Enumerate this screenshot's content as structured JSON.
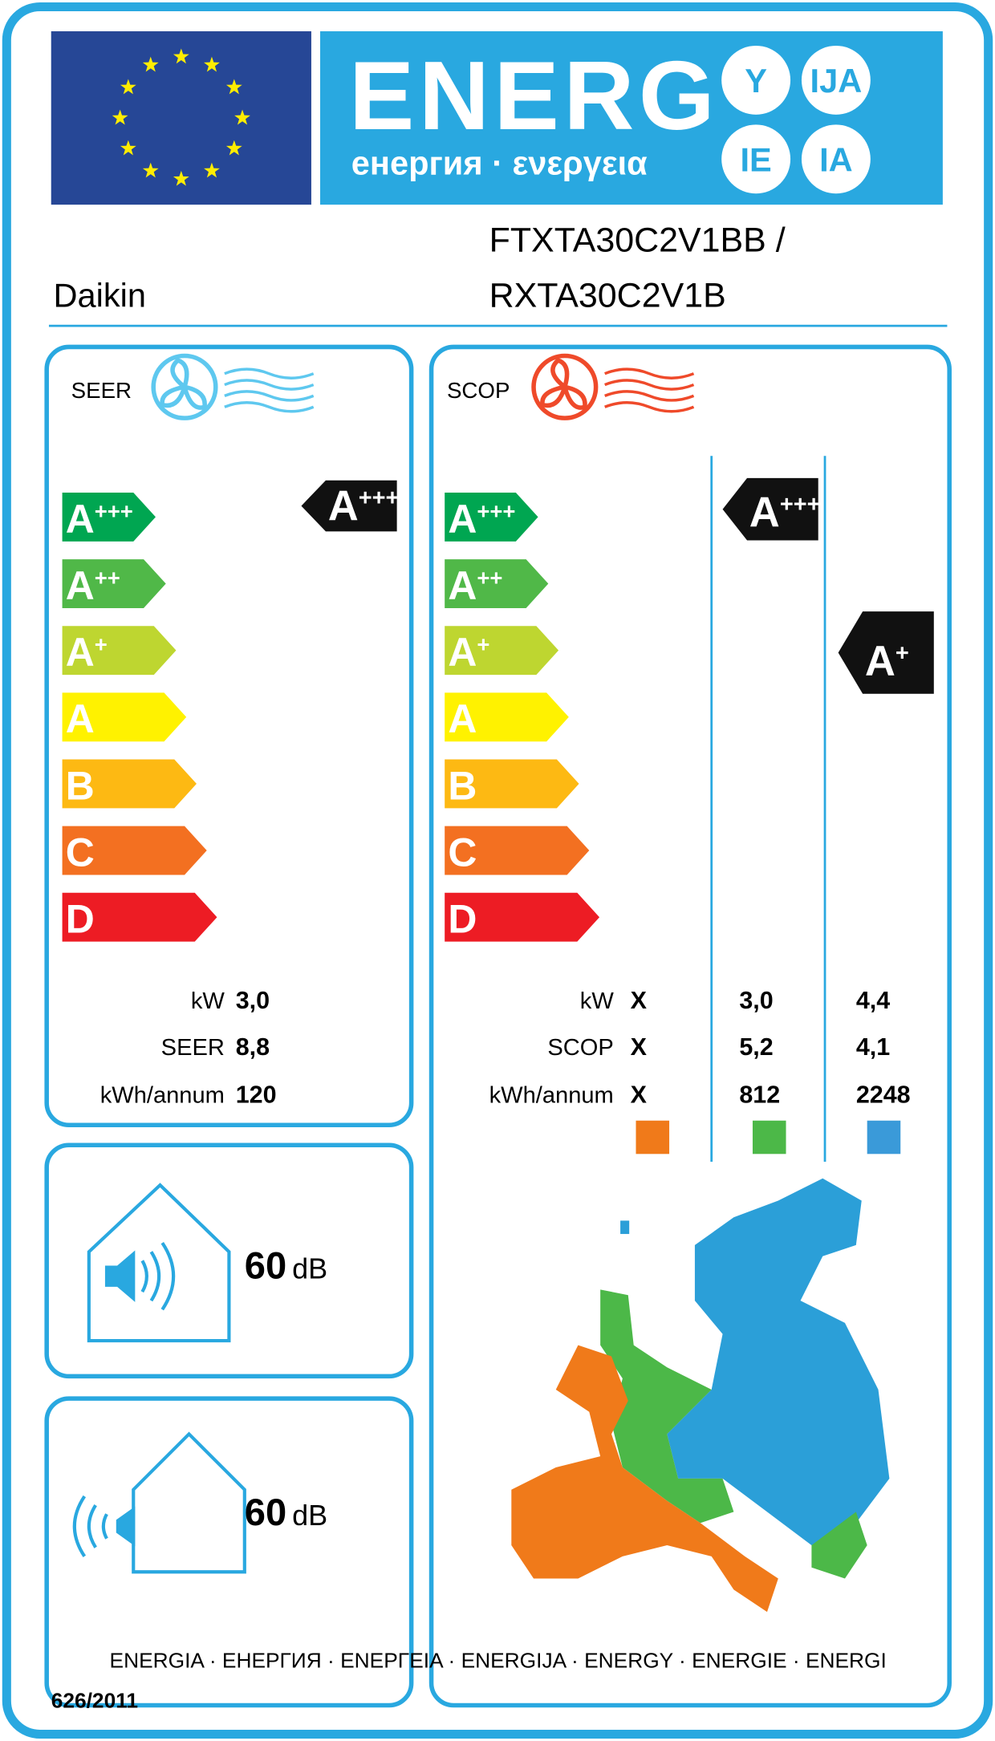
{
  "header": {
    "energy": "ENERG",
    "subtitle": "енергия · ενεργεια",
    "suffixes": [
      "Y",
      "IJA",
      "IE",
      "IA"
    ]
  },
  "supplier": "Daikin",
  "model": [
    "FTXTA30C2V1BB /",
    "RXTA30C2V1B"
  ],
  "classes": [
    {
      "letter": "A",
      "sup": "+++"
    },
    {
      "letter": "A",
      "sup": "++"
    },
    {
      "letter": "A",
      "sup": "+"
    },
    {
      "letter": "A",
      "sup": ""
    },
    {
      "letter": "B",
      "sup": ""
    },
    {
      "letter": "C",
      "sup": ""
    },
    {
      "letter": "D",
      "sup": ""
    }
  ],
  "cooling": {
    "label": "SEER",
    "rating": {
      "letter": "A",
      "sup": "+++"
    },
    "rows": [
      {
        "label": "kW",
        "value": "3,0"
      },
      {
        "label": "SEER",
        "value": "8,8"
      },
      {
        "label": "kWh/annum",
        "value": "120"
      }
    ]
  },
  "heating": {
    "label": "SCOP",
    "ratings": [
      {
        "letter": "A",
        "sup": "+++"
      },
      {
        "letter": "A",
        "sup": "+"
      }
    ],
    "rows": [
      {
        "label": "kW",
        "values": [
          "X",
          "3,0",
          "4,4"
        ]
      },
      {
        "label": "SCOP",
        "values": [
          "X",
          "5,2",
          "4,1"
        ]
      },
      {
        "label": "kWh/annum",
        "values": [
          "X",
          "812",
          "2248"
        ]
      }
    ]
  },
  "noise": [
    {
      "value": "60",
      "unit": "dB"
    },
    {
      "value": "60",
      "unit": "dB"
    }
  ],
  "footer": {
    "languages": "ENERGIA · ЕНЕРГИЯ · ΕΝΕΡΓΕΙΑ · ENERGIJA · ENERGY · ENERGIE · ENERGI",
    "regulation": "626/2011"
  }
}
